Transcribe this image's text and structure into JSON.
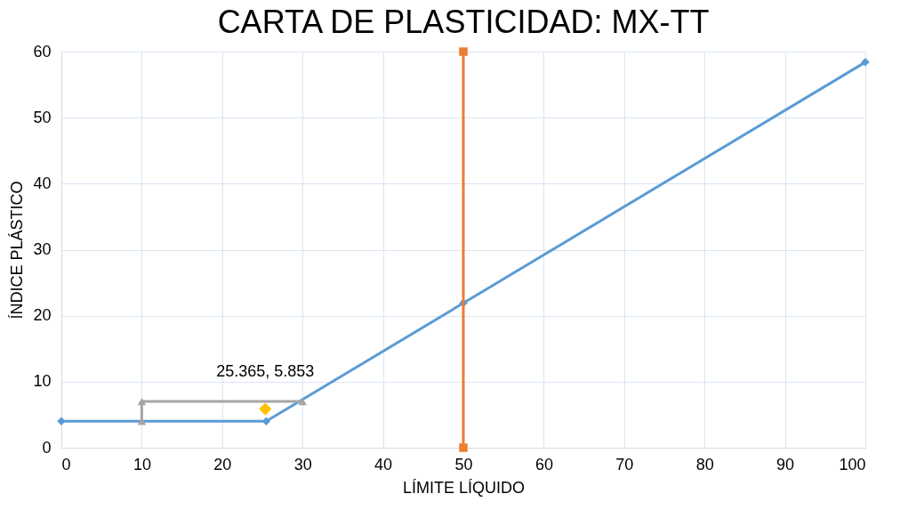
{
  "chart_data": {
    "type": "line",
    "title": "CARTA DE PLASTICIDAD: MX-TT",
    "xlabel": "LÍMITE LÍQUIDO",
    "ylabel": "ÍNDICE PLÁSTICO",
    "xlim": [
      0,
      100
    ],
    "ylim": [
      0,
      60
    ],
    "xticks": [
      0,
      10,
      20,
      30,
      40,
      50,
      60,
      70,
      80,
      90,
      100
    ],
    "yticks": [
      0,
      10,
      20,
      30,
      40,
      50,
      60
    ],
    "grid": true,
    "legend": false,
    "series": [
      {
        "color": "#5b9bd5",
        "marker": "diamond",
        "x": [
          0,
          25.48,
          50,
          100
        ],
        "values": [
          4,
          4,
          21.9,
          58.4
        ]
      },
      {
        "color": "#ed7d31",
        "marker": "square",
        "x": [
          50,
          50
        ],
        "values": [
          0,
          60
        ]
      },
      {
        "color": "#a5a5a5",
        "marker": "triangle",
        "x": [
          10,
          10,
          30
        ],
        "values": [
          4,
          7,
          7
        ]
      },
      {
        "type": "scatter",
        "color": "#ffc000",
        "marker": "diamond",
        "x": [
          25.365
        ],
        "values": [
          5.853
        ]
      }
    ],
    "annotations": [
      {
        "text": "25.365, 5.853",
        "x": 25.365,
        "y": 5.853
      }
    ]
  }
}
